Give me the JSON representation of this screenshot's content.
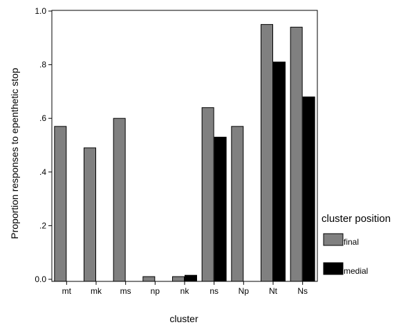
{
  "chart_data": {
    "type": "bar",
    "xlabel": "cluster",
    "ylabel": "Proportion responses to epenthetic stop",
    "ylim": [
      0,
      1.0
    ],
    "yticks": [
      {
        "value": 0.0,
        "label": "0.0"
      },
      {
        "value": 0.2,
        "label": ".2"
      },
      {
        "value": 0.4,
        "label": ".4"
      },
      {
        "value": 0.6,
        "label": ".6"
      },
      {
        "value": 0.8,
        "label": ".8"
      },
      {
        "value": 1.0,
        "label": "1.0"
      }
    ],
    "categories": [
      "mt",
      "mk",
      "ms",
      "np",
      "nk",
      "ns",
      "Np",
      "Nt",
      "Ns"
    ],
    "series": [
      {
        "name": "final",
        "color": "#808080",
        "values": [
          0.57,
          0.49,
          0.6,
          0.01,
          0.01,
          0.64,
          0.57,
          0.95,
          0.94
        ]
      },
      {
        "name": "medial",
        "color": "#000000",
        "values": [
          null,
          null,
          null,
          null,
          0.015,
          0.53,
          null,
          0.81,
          0.68
        ]
      }
    ],
    "legend": {
      "title": "cluster position",
      "placement": "right"
    },
    "grid": false
  }
}
